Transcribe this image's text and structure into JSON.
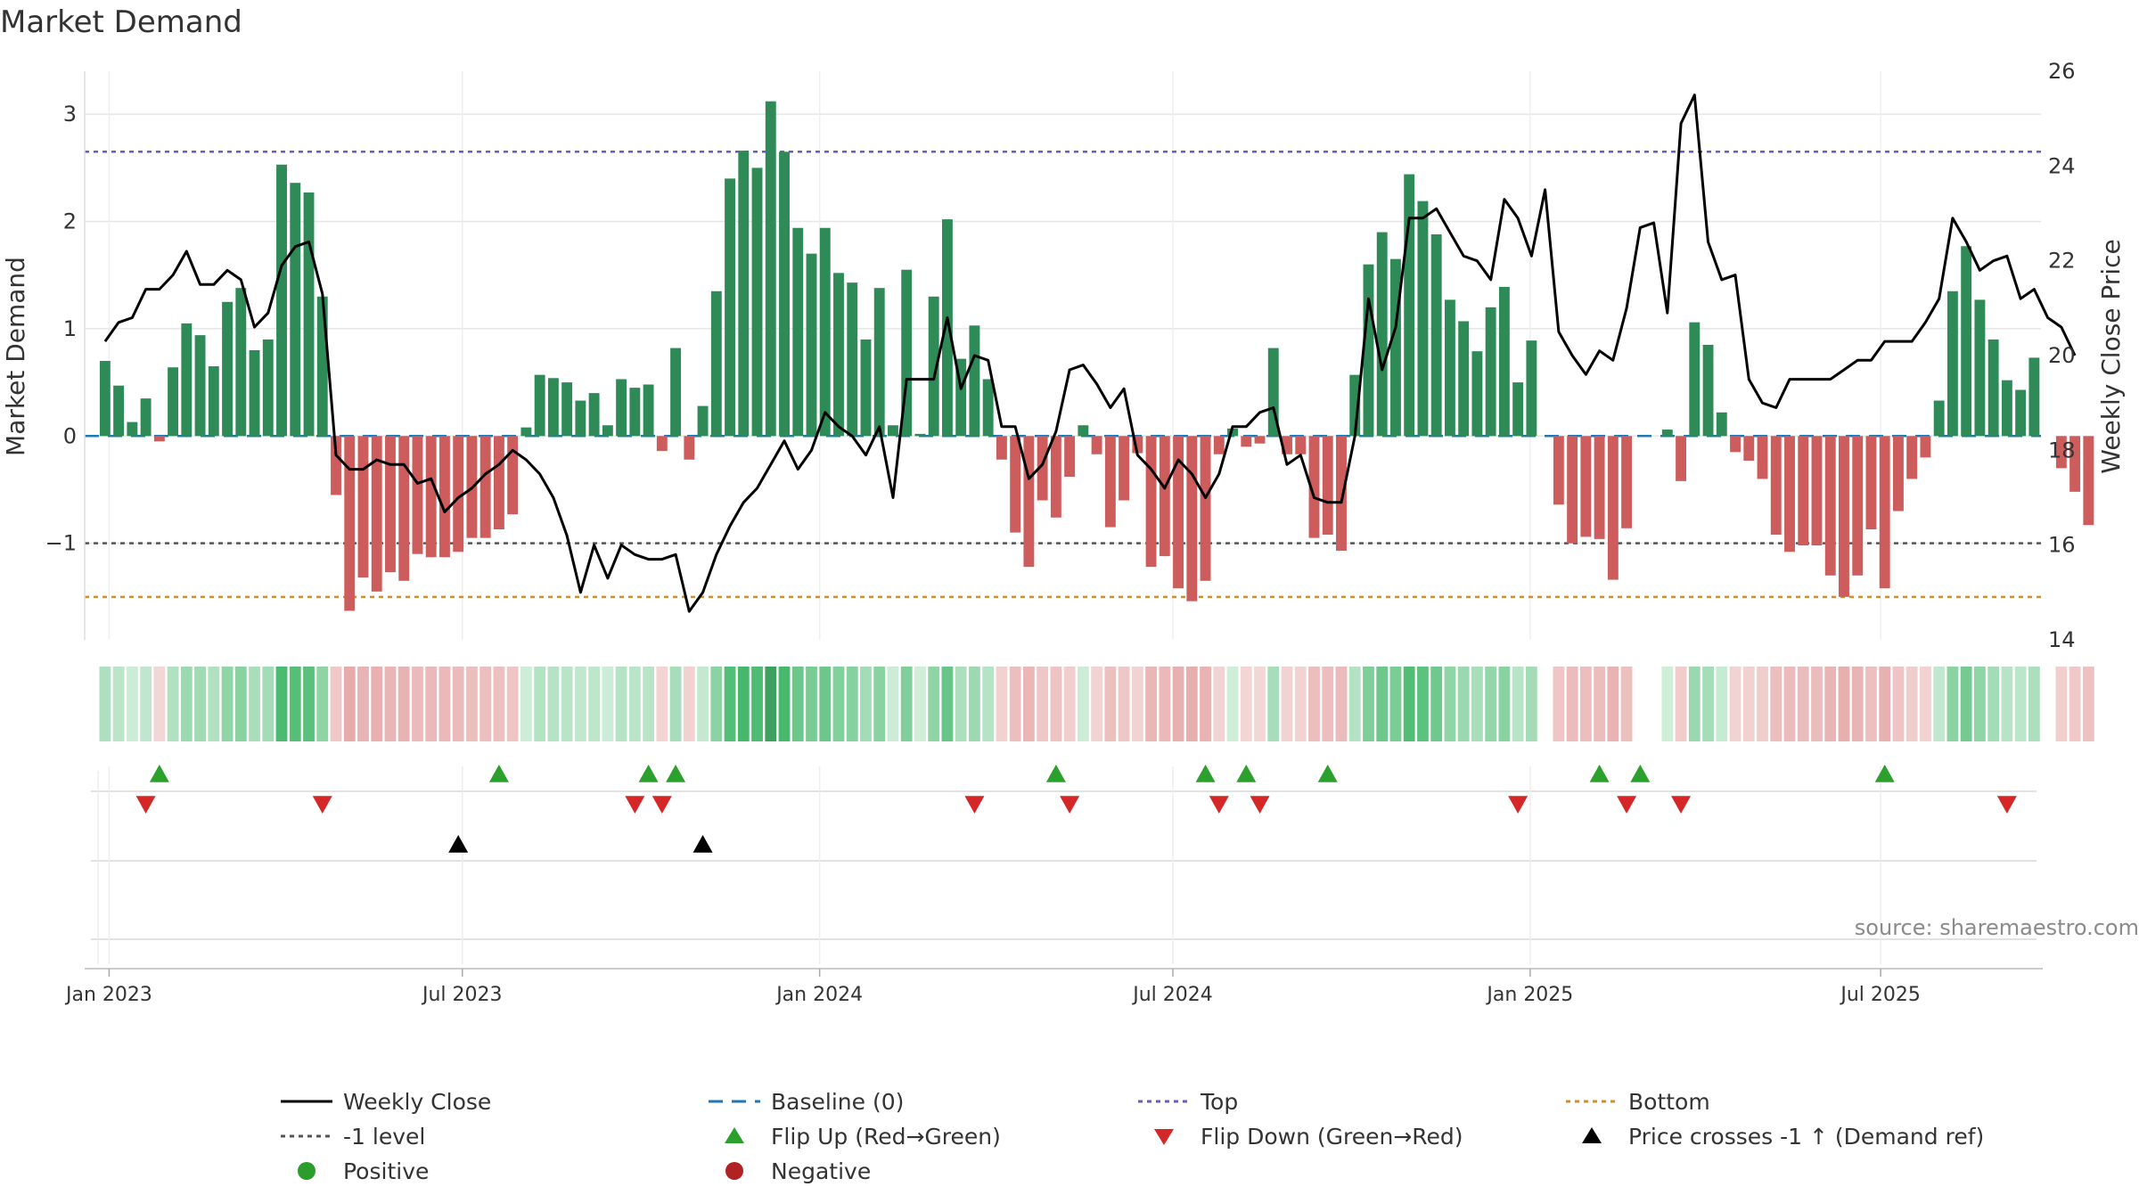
{
  "chart_data": {
    "type": "bar",
    "title": "Market Demand",
    "source": "source: sharemaestro.com",
    "ylabel_left": "Market Demand",
    "ylabel_right": "Weekly Close Price",
    "ylim_left": [
      -1.9,
      3.4
    ],
    "ylim_right": [
      14,
      26
    ],
    "yticks_left": [
      3,
      2,
      1,
      0,
      -1
    ],
    "yticks_left_labels": [
      "3",
      "2",
      "1",
      "0",
      "−1"
    ],
    "yticks_right": [
      26,
      24,
      22,
      20,
      18,
      16,
      14
    ],
    "x_range_weeks": [
      -1.5,
      142.5
    ],
    "xticks": [
      {
        "label": "Jan 2023",
        "week": 0.3
      },
      {
        "label": "Jul 2023",
        "week": 26.3
      },
      {
        "label": "Jan 2024",
        "week": 52.6
      },
      {
        "label": "Jul 2024",
        "week": 78.6
      },
      {
        "label": "Jan 2025",
        "week": 104.9
      },
      {
        "label": "Jul 2025",
        "week": 130.7
      }
    ],
    "reference_lines": {
      "baseline": 0,
      "top": 2.65,
      "minus1": -1,
      "bottom": -1.5
    },
    "demand": [
      0.7,
      0.47,
      0.13,
      0.35,
      -0.05,
      0.64,
      1.05,
      0.94,
      0.65,
      1.25,
      1.38,
      0.8,
      0.9,
      2.53,
      2.36,
      2.27,
      1.3,
      -0.55,
      -1.63,
      -1.32,
      -1.45,
      -1.27,
      -1.35,
      -1.1,
      -1.13,
      -1.13,
      -1.08,
      -0.95,
      -0.95,
      -0.87,
      -0.73,
      0.08,
      0.57,
      0.54,
      0.5,
      0.33,
      0.4,
      0.1,
      0.53,
      0.45,
      0.48,
      -0.14,
      0.82,
      -0.22,
      0.28,
      1.35,
      2.4,
      2.66,
      2.5,
      3.12,
      2.65,
      1.94,
      1.7,
      1.94,
      1.52,
      1.43,
      0.9,
      1.38,
      0.1,
      1.55,
      0.02,
      1.3,
      2.02,
      0.72,
      1.03,
      0.53,
      -0.22,
      -0.9,
      -1.22,
      -0.6,
      -0.76,
      -0.38,
      0.1,
      -0.17,
      -0.85,
      -0.6,
      -0.16,
      -1.22,
      -1.12,
      -1.42,
      -1.54,
      -1.35,
      -0.17,
      0.07,
      -0.1,
      -0.07,
      0.82,
      -0.17,
      -0.17,
      -0.95,
      -0.92,
      -1.07,
      0.57,
      1.6,
      1.9,
      1.65,
      2.44,
      2.19,
      1.88,
      1.27,
      1.07,
      0.79,
      1.2,
      1.39,
      0.5,
      0.89,
      0.0,
      -0.64,
      -1.0,
      -0.94,
      -0.96,
      -1.34,
      -0.86,
      0.0,
      0.0,
      0.06,
      -0.42,
      1.06,
      0.85,
      0.22,
      -0.15,
      -0.23,
      -0.4,
      -0.92,
      -1.08,
      -1.02,
      -1.02,
      -1.3,
      -1.5,
      -1.3,
      -0.87,
      -1.42,
      -0.7,
      -0.4,
      -0.2,
      0.33,
      1.35,
      1.77,
      1.27,
      0.9,
      0.52,
      0.43,
      0.73,
      0.0,
      -0.3,
      -0.52,
      -0.83
    ],
    "weekly_close": [
      20.3,
      20.7,
      20.8,
      21.4,
      21.4,
      21.7,
      22.2,
      21.5,
      21.5,
      21.8,
      21.6,
      20.6,
      20.9,
      21.9,
      22.3,
      22.4,
      21.3,
      17.9,
      17.6,
      17.6,
      17.8,
      17.7,
      17.7,
      17.3,
      17.4,
      16.7,
      17.0,
      17.2,
      17.5,
      17.7,
      18.0,
      17.8,
      17.5,
      17.0,
      16.2,
      15.0,
      16.0,
      15.3,
      16.0,
      15.8,
      15.7,
      15.7,
      15.8,
      14.6,
      15.0,
      15.8,
      16.4,
      16.9,
      17.2,
      17.7,
      18.2,
      17.6,
      18.0,
      18.8,
      18.5,
      18.3,
      17.9,
      18.5,
      17.0,
      19.5,
      19.5,
      19.5,
      20.8,
      19.3,
      20.0,
      19.9,
      18.5,
      18.5,
      17.4,
      17.7,
      18.4,
      19.7,
      19.8,
      19.4,
      18.9,
      19.3,
      17.9,
      17.6,
      17.2,
      17.8,
      17.5,
      17.0,
      17.5,
      18.5,
      18.5,
      18.8,
      18.9,
      17.7,
      17.9,
      17.0,
      16.9,
      16.9,
      18.3,
      21.2,
      19.7,
      20.6,
      22.9,
      22.9,
      23.1,
      22.6,
      22.1,
      22.0,
      21.6,
      23.3,
      22.9,
      22.1,
      23.5,
      20.5,
      20.0,
      19.6,
      20.1,
      19.9,
      21.0,
      22.7,
      22.8,
      20.9,
      24.9,
      25.5,
      22.4,
      21.6,
      21.7,
      19.5,
      19.0,
      18.9,
      19.5,
      19.5,
      19.5,
      19.5,
      19.7,
      19.9,
      19.9,
      20.3,
      20.3,
      20.3,
      20.7,
      21.2,
      22.9,
      22.4,
      21.8,
      22.0,
      22.1,
      21.2,
      21.4,
      20.8,
      20.6,
      20.0
    ],
    "strength_strip_values": "same as demand",
    "flip_up_weeks": [
      4,
      29,
      40,
      42,
      70,
      81,
      84,
      90,
      110,
      113,
      131
    ],
    "flip_down_weeks": [
      3,
      16,
      39,
      41,
      64,
      71,
      82,
      85,
      104,
      112,
      116,
      140
    ],
    "price_cross_weeks": [
      26,
      44
    ],
    "legend": [
      {
        "key": "weekly_close",
        "label": "Weekly Close"
      },
      {
        "key": "baseline",
        "label": "Baseline (0)"
      },
      {
        "key": "top",
        "label": "Top"
      },
      {
        "key": "bottom",
        "label": "Bottom"
      },
      {
        "key": "minus1",
        "label": "-1 level"
      },
      {
        "key": "flip_up",
        "label": "Flip Up (Red→Green)"
      },
      {
        "key": "flip_down",
        "label": "Flip Down (Green→Red)"
      },
      {
        "key": "price_cross",
        "label": "Price crosses -1 ↑ (Demand ref)"
      },
      {
        "key": "positive",
        "label": "Positive"
      },
      {
        "key": "negative",
        "label": "Negative"
      }
    ],
    "colors": {
      "positive_bar": "#2e8b57",
      "negative_bar": "#cd5c5c",
      "close_line": "#000000",
      "baseline": "#1f77b4",
      "top": "#6a5acd",
      "minus1": "#555555",
      "bottom": "#e08a1e",
      "flip_up": "#2ca02c",
      "flip_down": "#d62728",
      "price_cross": "#000000",
      "positive_dot": "#2a9d2a",
      "negative_dot": "#b22222",
      "grid": "#e6e6e6",
      "text": "#333333",
      "source": "#8a8a8a"
    }
  }
}
